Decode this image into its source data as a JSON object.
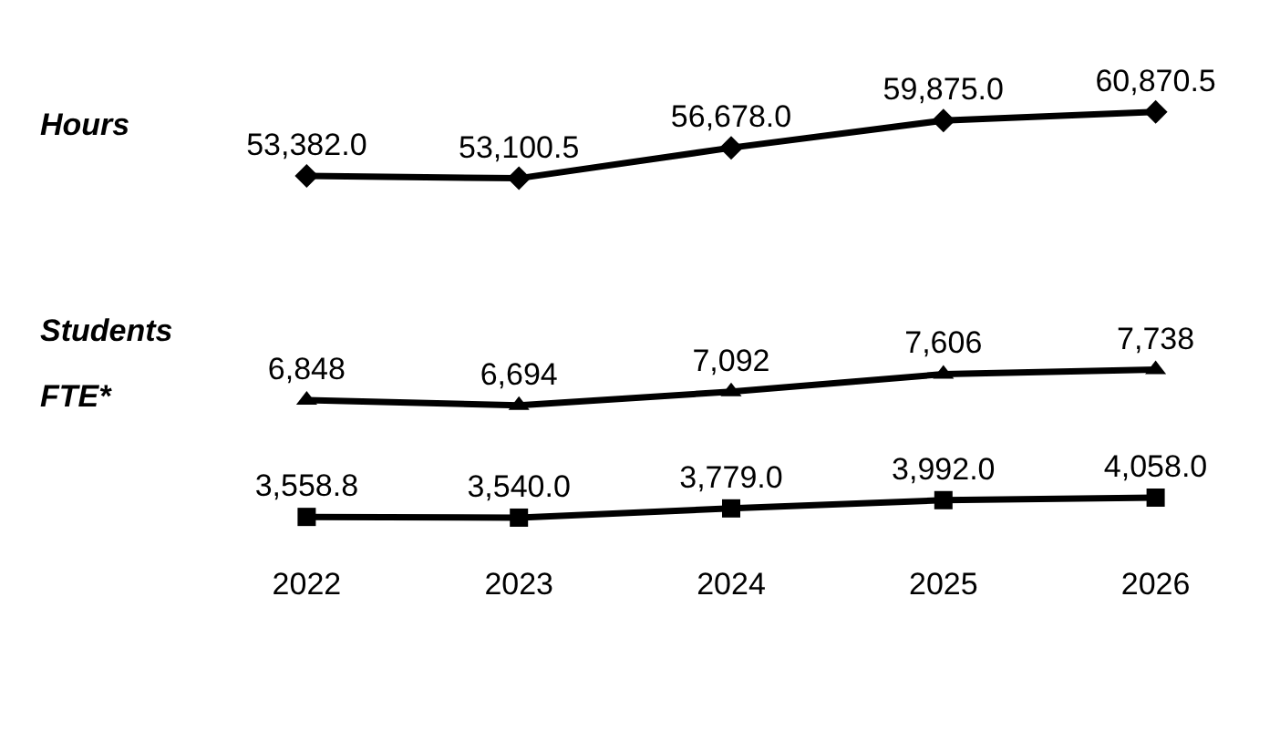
{
  "chart_data": [
    {
      "type": "line",
      "ylabel": "Hours",
      "categories": [
        "2022",
        "2023",
        "2024",
        "2025",
        "2026"
      ],
      "tick_labels": false,
      "marker": "diamond",
      "line_style": "solid",
      "series": [
        {
          "color": "#000000",
          "values": [
            53382.0,
            53100.5,
            56678.0,
            59875.0,
            60870.5
          ],
          "value_labels": [
            "53,382.0",
            "53,100.5",
            "56,678.0",
            "59,875.0",
            "60,870.5"
          ]
        }
      ]
    },
    {
      "type": "line",
      "ylabel": "Students",
      "categories": [
        "2022",
        "2023",
        "2024",
        "2025",
        "2026"
      ],
      "tick_labels": false,
      "marker": "triangle",
      "line_style": "solid",
      "series": [
        {
          "color": "#000000",
          "values": [
            6848,
            6694,
            7092,
            7606,
            7738
          ],
          "value_labels": [
            "6,848",
            "6,694",
            "7,092",
            "7,606",
            "7,738"
          ]
        }
      ]
    },
    {
      "type": "line",
      "ylabel": "FTE*",
      "categories": [
        "2022",
        "2023",
        "2024",
        "2025",
        "2026"
      ],
      "tick_labels": "x",
      "marker": "square",
      "line_style": "solid",
      "series": [
        {
          "color": "#000000",
          "values": [
            3558.8,
            3540.0,
            3779.0,
            3992.0,
            4058.0
          ],
          "value_labels": [
            "3,558.8",
            "3,540.0",
            "3,779.0",
            "3,992.0",
            "4,058.0"
          ]
        }
      ]
    }
  ]
}
